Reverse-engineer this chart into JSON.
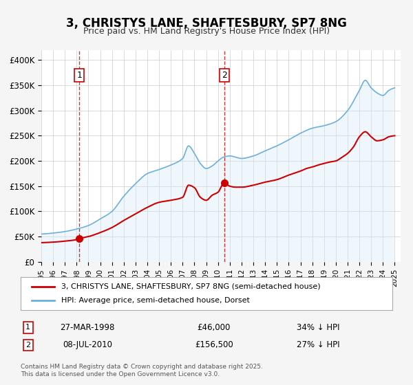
{
  "title": "3, CHRISTYS LANE, SHAFTESBURY, SP7 8NG",
  "subtitle": "Price paid vs. HM Land Registry's House Price Index (HPI)",
  "legend_line1": "3, CHRISTYS LANE, SHAFTESBURY, SP7 8NG (semi-detached house)",
  "legend_line2": "HPI: Average price, semi-detached house, Dorset",
  "sale1_label": "1",
  "sale1_date": "27-MAR-1998",
  "sale1_price": "£46,000",
  "sale1_hpi": "34% ↓ HPI",
  "sale2_label": "2",
  "sale2_date": "08-JUL-2010",
  "sale2_price": "£156,500",
  "sale2_hpi": "27% ↓ HPI",
  "footnote": "Contains HM Land Registry data © Crown copyright and database right 2025.\nThis data is licensed under the Open Government Licence v3.0.",
  "red_color": "#cc0000",
  "blue_color": "#6ab0de",
  "blue_fill": "#d6eaf8",
  "marker1_x": 1998.23,
  "marker1_y": 46000,
  "marker2_x": 2010.52,
  "marker2_y": 156500,
  "vline1_x": 1998.23,
  "vline2_x": 2010.52,
  "xlim": [
    1995.0,
    2025.5
  ],
  "ylim": [
    0,
    420000
  ],
  "yticks": [
    0,
    50000,
    100000,
    150000,
    200000,
    250000,
    300000,
    350000,
    400000
  ],
  "ytick_labels": [
    "£0",
    "£50K",
    "£100K",
    "£150K",
    "£200K",
    "£250K",
    "£300K",
    "£350K",
    "£400K"
  ],
  "background_color": "#f5f5f5",
  "plot_bg_color": "#ffffff"
}
